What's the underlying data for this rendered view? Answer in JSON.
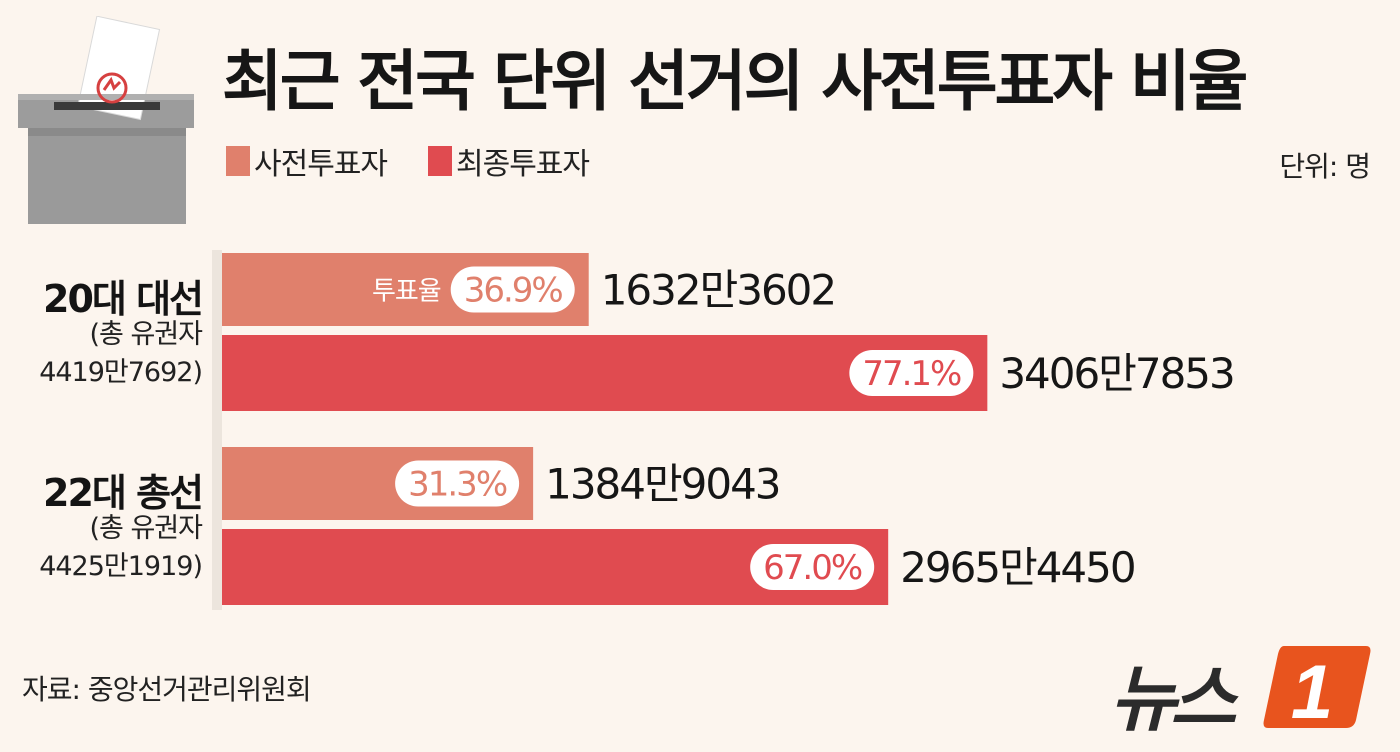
{
  "title": "최근 전국 단위 선거의 사전투표자 비율",
  "unit": "단위: 명",
  "source": "자료: 중앙선거관리위원회",
  "logo": {
    "text": "뉴스",
    "mark": "1"
  },
  "colors": {
    "early": "#e0806c",
    "final": "#e04b50",
    "background": "#fcf5ee",
    "logo_accent": "#e8541e"
  },
  "legend": [
    {
      "label": "사전투표자",
      "color": "#e0806c"
    },
    {
      "label": "최종투표자",
      "color": "#e04b50"
    }
  ],
  "categories": [
    {
      "title": "20대 대선",
      "sub1": "(총 유권자",
      "sub2": "4419만7692)"
    },
    {
      "title": "22대 총선",
      "sub1": "(총 유권자",
      "sub2": "4425만1919)"
    }
  ],
  "rate_prefix": "투표율",
  "chart_data": {
    "type": "bar",
    "orientation": "horizontal",
    "title": "최근 전국 단위 선거의 사전투표자 비율",
    "unit": "명",
    "categories": [
      "20대 대선",
      "22대 총선"
    ],
    "series": [
      {
        "name": "사전투표자",
        "values": [
          16323602,
          13849043
        ],
        "labels": [
          "1632만3602",
          "1384만9043"
        ],
        "rates": [
          "36.9%",
          "31.3%"
        ]
      },
      {
        "name": "최종투표자",
        "values": [
          34067853,
          29654450
        ],
        "labels": [
          "3406만7853",
          "2965만4450"
        ],
        "rates": [
          "77.1%",
          "67.0%"
        ]
      }
    ],
    "xlim": [
      0,
      43000000
    ],
    "grid": false,
    "legend": "top-left"
  }
}
